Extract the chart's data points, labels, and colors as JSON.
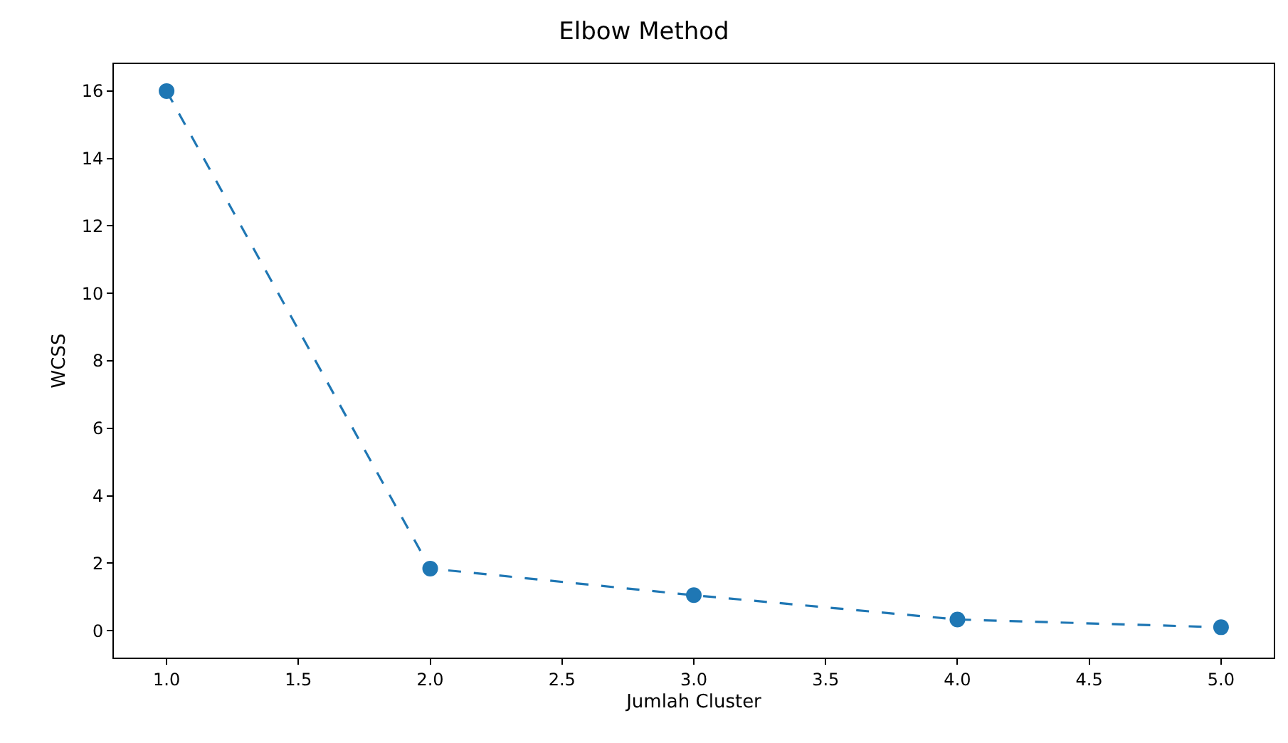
{
  "chart_data": {
    "type": "line",
    "title": "Elbow Method",
    "xlabel": "Jumlah Cluster",
    "ylabel": "WCSS",
    "x": [
      1,
      2,
      3,
      4,
      5
    ],
    "series": [
      {
        "color": "#1f77b4",
        "values": [
          16.0,
          1.84,
          1.05,
          0.33,
          0.1
        ]
      }
    ],
    "xlim": [
      0.8,
      5.2
    ],
    "xticks": [
      {
        "value": 1,
        "label": "1.0"
      },
      {
        "value": 1.5,
        "label": "1.5"
      },
      {
        "value": 2,
        "label": "2.0"
      },
      {
        "value": 2.5,
        "label": "2.5"
      },
      {
        "value": 3,
        "label": "3.0"
      },
      {
        "value": 3.5,
        "label": "3.5"
      },
      {
        "value": 4,
        "label": "4.0"
      },
      {
        "value": 4.5,
        "label": "4.5"
      },
      {
        "value": 5,
        "label": "5.0"
      }
    ],
    "ylim": [
      -0.8,
      16.8
    ],
    "yticks": [
      0,
      2,
      4,
      6,
      8,
      10,
      12,
      14,
      16
    ],
    "marker": "circle",
    "line_style": "dashed",
    "legend": false
  }
}
